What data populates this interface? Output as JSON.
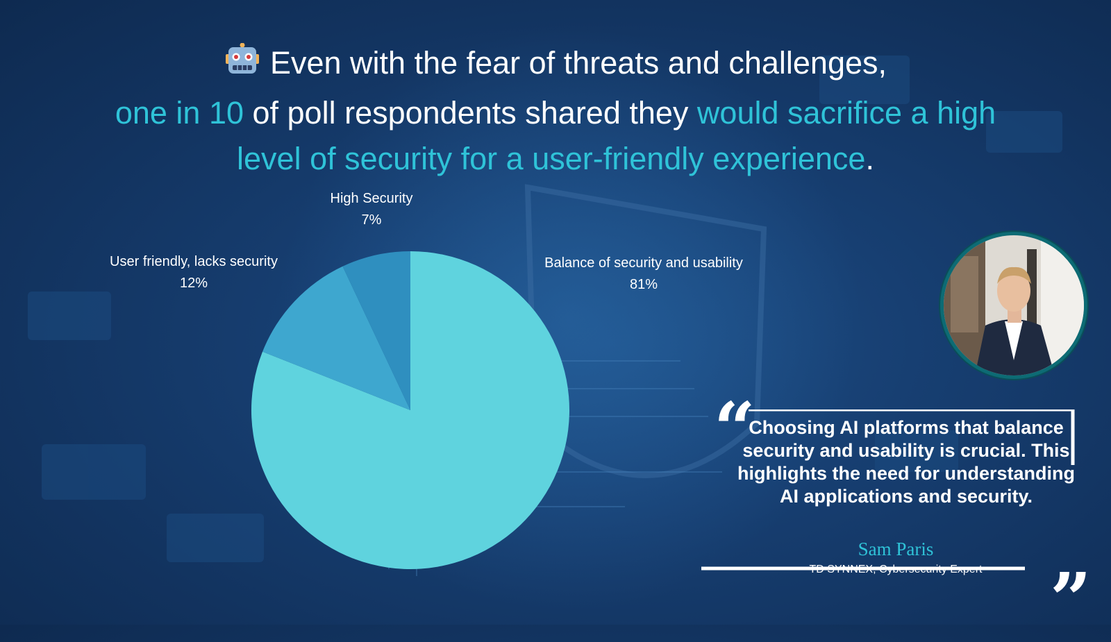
{
  "headline": {
    "line1": "Even with the fear of threats and challenges,",
    "hl1": "one in 10",
    "mid": " of poll respondents shared they ",
    "hl2": "would sacrifice a high level of security for a user-friendly experience",
    "end": "."
  },
  "chart_data": {
    "type": "pie",
    "slices": [
      {
        "label": "Balance of security and usability",
        "value": 81,
        "value_label": "81%",
        "color": "#5fd3de"
      },
      {
        "label": "User friendly, lacks security",
        "value": 12,
        "value_label": "12%",
        "color": "#3ea7cf"
      },
      {
        "label": "High Security",
        "value": 7,
        "value_label": "7%",
        "color": "#2f8fbf"
      }
    ]
  },
  "quote": {
    "text": "Choosing AI platforms that balance security and usability is crucial. This highlights the need for understanding AI applications and security.",
    "author": "Sam Paris",
    "role": "TD SYNNEX, Cybersecurity Expert"
  },
  "colors": {
    "accent": "#2fc3d8",
    "background": "#173f72"
  }
}
